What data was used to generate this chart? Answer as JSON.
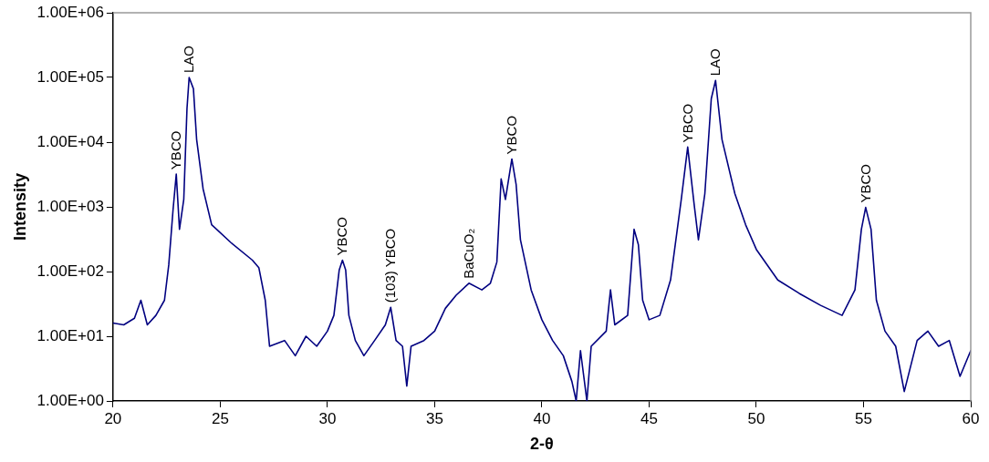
{
  "chart_data": {
    "type": "line",
    "xlabel": "2-θ",
    "ylabel": "Intensity",
    "log": "y",
    "grid": false,
    "legend": false,
    "marker": "none",
    "line_style": "solid",
    "xlim": [
      20,
      60
    ],
    "xticks": [
      20,
      25,
      30,
      35,
      40,
      45,
      50,
      55,
      60
    ],
    "ylim": [
      1,
      1000000
    ],
    "yticks": [
      {
        "value": 1,
        "label": "1.00E+00"
      },
      {
        "value": 10,
        "label": "1.00E+01"
      },
      {
        "value": 100,
        "label": "1.00E+02"
      },
      {
        "value": 1000,
        "label": "1.00E+03"
      },
      {
        "value": 10000,
        "label": "1.00E+04"
      },
      {
        "value": 100000,
        "label": "1.00E+05"
      },
      {
        "value": 1000000,
        "label": "1.00E+06"
      }
    ],
    "series": [
      {
        "color": "#000080",
        "x": [
          20,
          20.5,
          21,
          21.3,
          21.6,
          22,
          22.4,
          22.6,
          22.8,
          22.95,
          23.1,
          23.3,
          23.45,
          23.55,
          23.75,
          23.9,
          24.2,
          24.6,
          25.5,
          26.5,
          26.8,
          27.1,
          27.3,
          28,
          28.5,
          29,
          29.5,
          30,
          30.3,
          30.55,
          30.7,
          30.85,
          31,
          31.3,
          31.7,
          32.2,
          32.7,
          32.95,
          33.2,
          33.5,
          33.7,
          33.9,
          34.5,
          35,
          35.5,
          36,
          36.6,
          37.2,
          37.6,
          37.9,
          38.1,
          38.3,
          38.6,
          38.8,
          39,
          39.5,
          40,
          40.5,
          41,
          41.4,
          41.6,
          41.8,
          42.1,
          42.3,
          43,
          43.2,
          43.4,
          44,
          44.3,
          44.5,
          44.7,
          45,
          45.5,
          46,
          46.5,
          46.8,
          47.1,
          47.3,
          47.6,
          47.9,
          48.1,
          48.4,
          49,
          49.5,
          50,
          51,
          52,
          53,
          54,
          54.6,
          54.9,
          55.1,
          55.35,
          55.6,
          56,
          56.5,
          56.9,
          57.5,
          58,
          58.5,
          59,
          59.5,
          60
        ],
        "values": [
          16,
          15,
          19,
          36,
          15,
          21,
          36,
          127,
          900,
          3200,
          450,
          1300,
          33000,
          100000,
          67000,
          11000,
          1900,
          530,
          280,
          150,
          115,
          36,
          7,
          8.6,
          5,
          10,
          7,
          12,
          21,
          106,
          150,
          106,
          21,
          8.6,
          5,
          8.6,
          15,
          28,
          8.6,
          7,
          1.7,
          7,
          8.6,
          12,
          27,
          43,
          66,
          52,
          66,
          140,
          2700,
          1300,
          5500,
          2200,
          310,
          52,
          18,
          8.6,
          5,
          2,
          1,
          6,
          1,
          7,
          12,
          52,
          15,
          21,
          450,
          260,
          36,
          18,
          21,
          74,
          1300,
          8400,
          1100,
          310,
          1600,
          47000,
          90000,
          11000,
          1600,
          530,
          220,
          74,
          46,
          30,
          21,
          52,
          450,
          980,
          450,
          36,
          12,
          7,
          1.4,
          8.6,
          12,
          7,
          8.6,
          2.4,
          6
        ]
      }
    ],
    "annotations": [
      {
        "text": "YBCO",
        "x": 22.95,
        "y": 3200
      },
      {
        "text": "LAO",
        "x": 23.55,
        "y": 100000
      },
      {
        "text": "YBCO",
        "x": 30.7,
        "y": 150
      },
      {
        "text": "(103) YBCO",
        "x": 32.95,
        "y": 28
      },
      {
        "text": "BaCuO₂",
        "x": 36.6,
        "y": 66
      },
      {
        "text": "YBCO",
        "x": 38.6,
        "y": 5500
      },
      {
        "text": "YBCO",
        "x": 46.8,
        "y": 8400
      },
      {
        "text": "LAO",
        "x": 48.1,
        "y": 90000
      },
      {
        "text": "YBCO",
        "x": 55.1,
        "y": 980
      }
    ]
  }
}
